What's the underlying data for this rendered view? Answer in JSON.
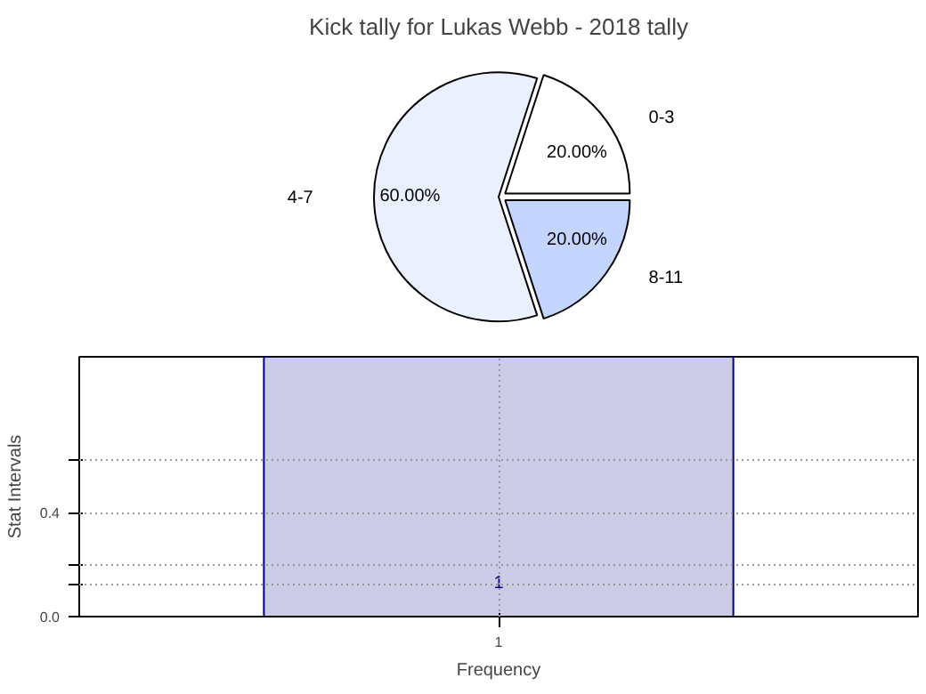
{
  "chart_data": [
    {
      "type": "pie",
      "title": "Kick tally for Lukas Webb - 2018 tally",
      "categories": [
        "0-3",
        "4-7",
        "8-11"
      ],
      "values": [
        20,
        60,
        20
      ],
      "colors": [
        "#ffffff",
        "#eaf0fe",
        "#c4d6ff"
      ],
      "value_labels": [
        "20.00%",
        "60.00%",
        "20.00%"
      ]
    },
    {
      "type": "bar",
      "xlabel": "Frequency",
      "ylabel": "Stat Intervals",
      "categories": [
        "1"
      ],
      "values": [
        1
      ],
      "color": "#cccce6",
      "data_labels": true,
      "ylim": [
        0,
        1.0
      ],
      "yticks": [
        {
          "value": 0,
          "label": "0.0"
        },
        {
          "value": 0.12,
          "label": null
        },
        {
          "value": 0.2,
          "label": null
        },
        {
          "value": 0.4,
          "label": "0.4"
        },
        {
          "value": 0.6,
          "label": null
        }
      ],
      "grid": true
    }
  ]
}
